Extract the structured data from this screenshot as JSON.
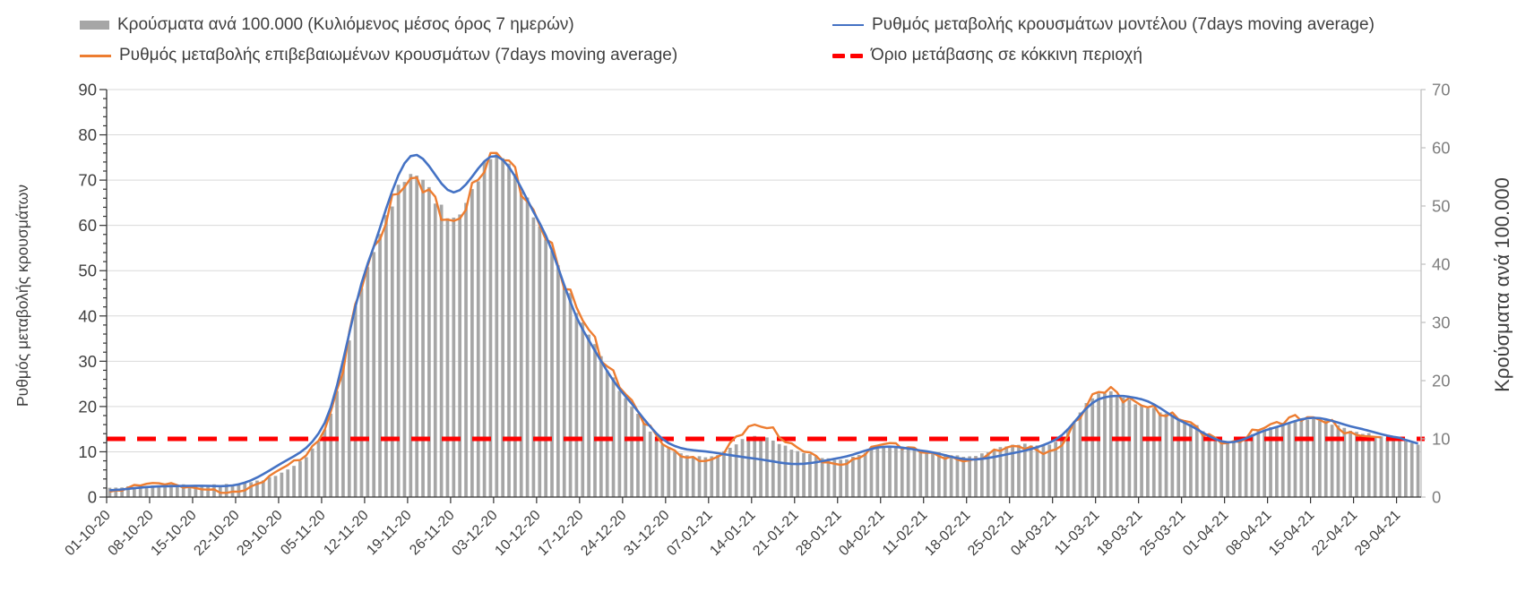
{
  "chart_data": {
    "type": "combo",
    "description": "Daily bars with 7-day moving-average rate-of-change lines and a red-zone threshold",
    "x_tick_labels": [
      "01-10-20",
      "08-10-20",
      "15-10-20",
      "22-10-20",
      "29-10-20",
      "05-11-20",
      "12-11-20",
      "19-11-20",
      "26-11-20",
      "03-12-20",
      "10-12-20",
      "17-12-20",
      "24-12-20",
      "31-12-20",
      "07-01-21",
      "14-01-21",
      "21-01-21",
      "28-01-21",
      "04-02-21",
      "11-02-21",
      "18-02-21",
      "25-02-21",
      "04-03-21",
      "11-03-21",
      "18-03-21",
      "25-03-21",
      "01-04-21",
      "08-04-21",
      "15-04-21",
      "22-04-21",
      "29-04-21"
    ],
    "daily_span": {
      "start": "01-10-20",
      "end": "02-05-21",
      "n_days": 214
    },
    "axes": {
      "left": {
        "title": "Ρυθμός μεταβολής κρουσμάτων",
        "min": 0,
        "max": 90,
        "step": 10
      },
      "right": {
        "title": "Κρούσματα ανά 100.000",
        "min": 0,
        "max": 70,
        "step": 10
      }
    },
    "grid": {
      "horizontal": true,
      "color": "#D9D9D9"
    },
    "legend_position": "top",
    "series": [
      {
        "name": "Κρούσματα ανά 100.000 (Κυλιόμενος μέσος όρος 7 ημερών)",
        "kind": "bar",
        "axis": "right",
        "color": "#A6A6A6",
        "weekly_values": [
          1.6,
          2.0,
          2.1,
          2.3,
          4.2,
          11.6,
          39.5,
          55.5,
          48,
          59,
          46.5,
          30,
          17,
          8.4,
          7.0,
          10.5,
          7.9,
          6.4,
          8.6,
          7.9,
          7.0,
          9.0,
          9.5,
          17.8,
          15.7,
          13.2,
          9.6,
          12.0,
          13.4,
          11.2,
          9.9
        ],
        "tail_values": [
          9.6,
          9.3,
          9.0
        ]
      },
      {
        "name": "Ρυθμός μεταβολής επιβεβαιωμένων κρουσμάτων (7days moving average)",
        "kind": "line",
        "axis": "left",
        "color": "#ED7D31",
        "weekly_values": [
          1.2,
          3.1,
          2.0,
          1.2,
          6.3,
          14.9,
          51,
          70.4,
          61,
          76,
          60,
          39,
          22.7,
          10.9,
          8.3,
          16.0,
          10.9,
          7.1,
          11.7,
          9.8,
          8.1,
          11.3,
          10.5,
          23.2,
          20.2,
          16.8,
          11.9,
          16.1,
          17.6,
          13.7,
          null
        ],
        "tail_values": [
          13.5,
          13.4,
          13.3,
          13.2
        ]
      },
      {
        "name": "Ρυθμός μεταβολής κρουσμάτων μοντέλου (7days moving average)",
        "kind": "line",
        "axis": "left",
        "color": "#4472C4",
        "weekly_values": [
          1.5,
          2.3,
          2.5,
          2.8,
          7.5,
          16.4,
          51.5,
          75.3,
          67.3,
          75.3,
          60.5,
          37,
          22.2,
          11.9,
          9.9,
          8.5,
          7.3,
          8.7,
          11.1,
          10.1,
          8.3,
          9.7,
          12.7,
          21.6,
          21.6,
          16.4,
          12.1,
          15.1,
          17.5,
          15.3,
          13.1
        ],
        "tail_values": [
          12.6,
          12.2,
          11.8
        ]
      },
      {
        "name": "Όριο μετάβασης σε κόκκινη περιοχή",
        "kind": "threshold",
        "axis": "right",
        "color": "#FF0000",
        "value": 10
      }
    ]
  },
  "colors": {
    "bars": "#A6A6A6",
    "line_confirmed": "#ED7D31",
    "line_model": "#4472C4",
    "threshold": "#FF0000",
    "gridline": "#D9D9D9",
    "axis": "#333333",
    "right_border": "#BFBFBF",
    "tick_label_left": "#404040",
    "tick_label_right": "#7F7F7F",
    "legend_text": "#3F3F3F"
  }
}
